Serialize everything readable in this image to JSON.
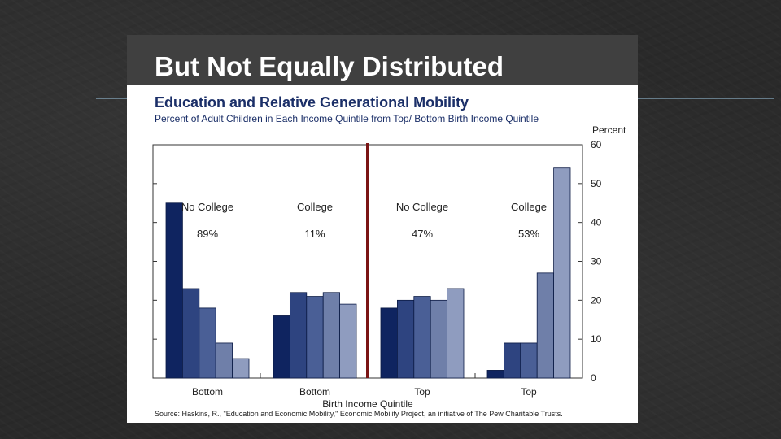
{
  "slide": {
    "title": "But Not Equally Distributed",
    "source": "Source: Haskins, R., \"Education and Economic Mobility,\" Economic Mobility Project, an initiative of The Pew Charitable Trusts."
  },
  "colors": {
    "background": "#2a2a2a",
    "title_bar": "#404040",
    "divider": "#7a1414",
    "quintile_shades": [
      "#0f2460",
      "#2e4480",
      "#4a5f96",
      "#6f7fa9",
      "#8f9cbf"
    ]
  },
  "chart_data": {
    "type": "bar",
    "title": "Education and Relative Generational Mobility",
    "subtitle": "Percent of Adult Children in Each Income Quintile from Top/ Bottom Birth Income Quintile",
    "ylabel": "Percent",
    "xlabel": "Birth Income Quintile",
    "ylim": [
      0,
      60
    ],
    "yticks": [
      0,
      10,
      20,
      30,
      40,
      50,
      60
    ],
    "legend_position": "none",
    "divider_after_group": 1,
    "groups": [
      {
        "category": "Bottom",
        "label": "No College",
        "share": "89%",
        "values": [
          45,
          23,
          18,
          9,
          5
        ]
      },
      {
        "category": "Bottom",
        "label": "College",
        "share": "11%",
        "values": [
          16,
          22,
          21,
          22,
          19
        ]
      },
      {
        "category": "Top",
        "label": "No College",
        "share": "47%",
        "values": [
          18,
          20,
          21,
          20,
          23
        ]
      },
      {
        "category": "Top",
        "label": "College",
        "share": "53%",
        "values": [
          2,
          9,
          9,
          27,
          54
        ]
      }
    ]
  }
}
